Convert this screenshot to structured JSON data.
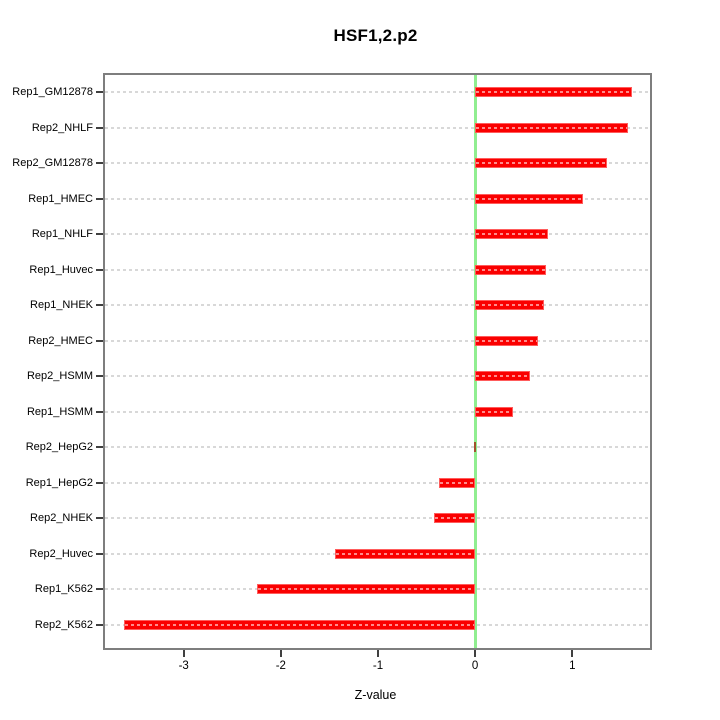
{
  "chart_data": {
    "type": "bar",
    "orientation": "horizontal",
    "title": "HSF1,2.p2",
    "xlabel": "Z-value",
    "ylabel": "",
    "categories": [
      "Rep1_GM12878",
      "Rep2_NHLF",
      "Rep2_GM12878",
      "Rep1_HMEC",
      "Rep1_NHLF",
      "Rep1_Huvec",
      "Rep1_NHEK",
      "Rep2_HMEC",
      "Rep2_HSMM",
      "Rep1_HSMM",
      "Rep2_HepG2",
      "Rep1_HepG2",
      "Rep2_NHEK",
      "Rep2_Huvec",
      "Rep1_K562",
      "Rep2_K562"
    ],
    "values": [
      1.61,
      1.57,
      1.36,
      1.11,
      0.75,
      0.73,
      0.71,
      0.65,
      0.57,
      0.39,
      0.0,
      -0.37,
      -0.42,
      -1.44,
      -2.25,
      -3.61
    ],
    "xlim": [
      -3.81,
      1.8
    ],
    "xticks": [
      -3,
      -2,
      -1,
      0,
      1
    ],
    "baseline": 0,
    "grid": "horizontal-dashed",
    "legend": "none",
    "colors": {
      "bar": "#fa0000",
      "bar_edge": "#ff5c5c",
      "near_zero_bar": "#a0522d",
      "zero_line": "#90ee90",
      "grid_line": "#d8d8d8",
      "box_border": "#7e7e7e",
      "tick": "#404040",
      "text": "#000000"
    }
  }
}
